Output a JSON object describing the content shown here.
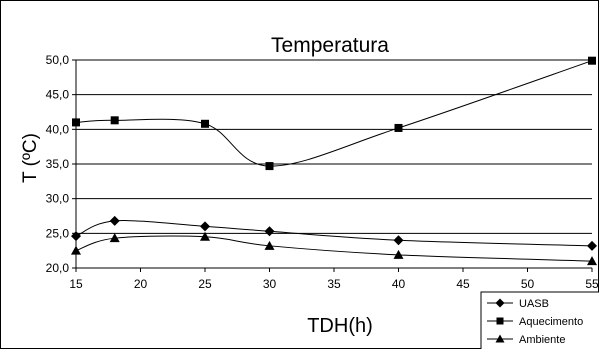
{
  "chart_data": {
    "type": "line",
    "title": "Temperatura",
    "xlabel": "TDH(h)",
    "ylabel": "T (ºC)",
    "xlim": [
      15,
      55
    ],
    "ylim": [
      20,
      50
    ],
    "x_ticks": [
      "15",
      "20",
      "25",
      "30",
      "35",
      "40",
      "45",
      "50",
      "55"
    ],
    "y_ticks": [
      "20,0",
      "25,0",
      "30,0",
      "35,0",
      "40,0",
      "45,0",
      "50,0"
    ],
    "grid": "horizontal",
    "legend_position": "bottom-right",
    "series": [
      {
        "name": "UASB",
        "marker": "diamond",
        "color": "#000000",
        "x": [
          15,
          18,
          25,
          30,
          40,
          55
        ],
        "y": [
          24.6,
          26.8,
          26.0,
          25.3,
          24.0,
          23.2
        ]
      },
      {
        "name": "Aquecimento",
        "marker": "square",
        "color": "#000000",
        "x": [
          15,
          18,
          25,
          30,
          40,
          55
        ],
        "y": [
          41.0,
          41.3,
          40.8,
          34.7,
          40.2,
          49.9
        ]
      },
      {
        "name": "Ambiente",
        "marker": "triangle",
        "color": "#000000",
        "x": [
          15,
          18,
          25,
          30,
          40,
          55
        ],
        "y": [
          22.5,
          24.3,
          24.5,
          23.2,
          21.9,
          21.0
        ]
      }
    ]
  }
}
